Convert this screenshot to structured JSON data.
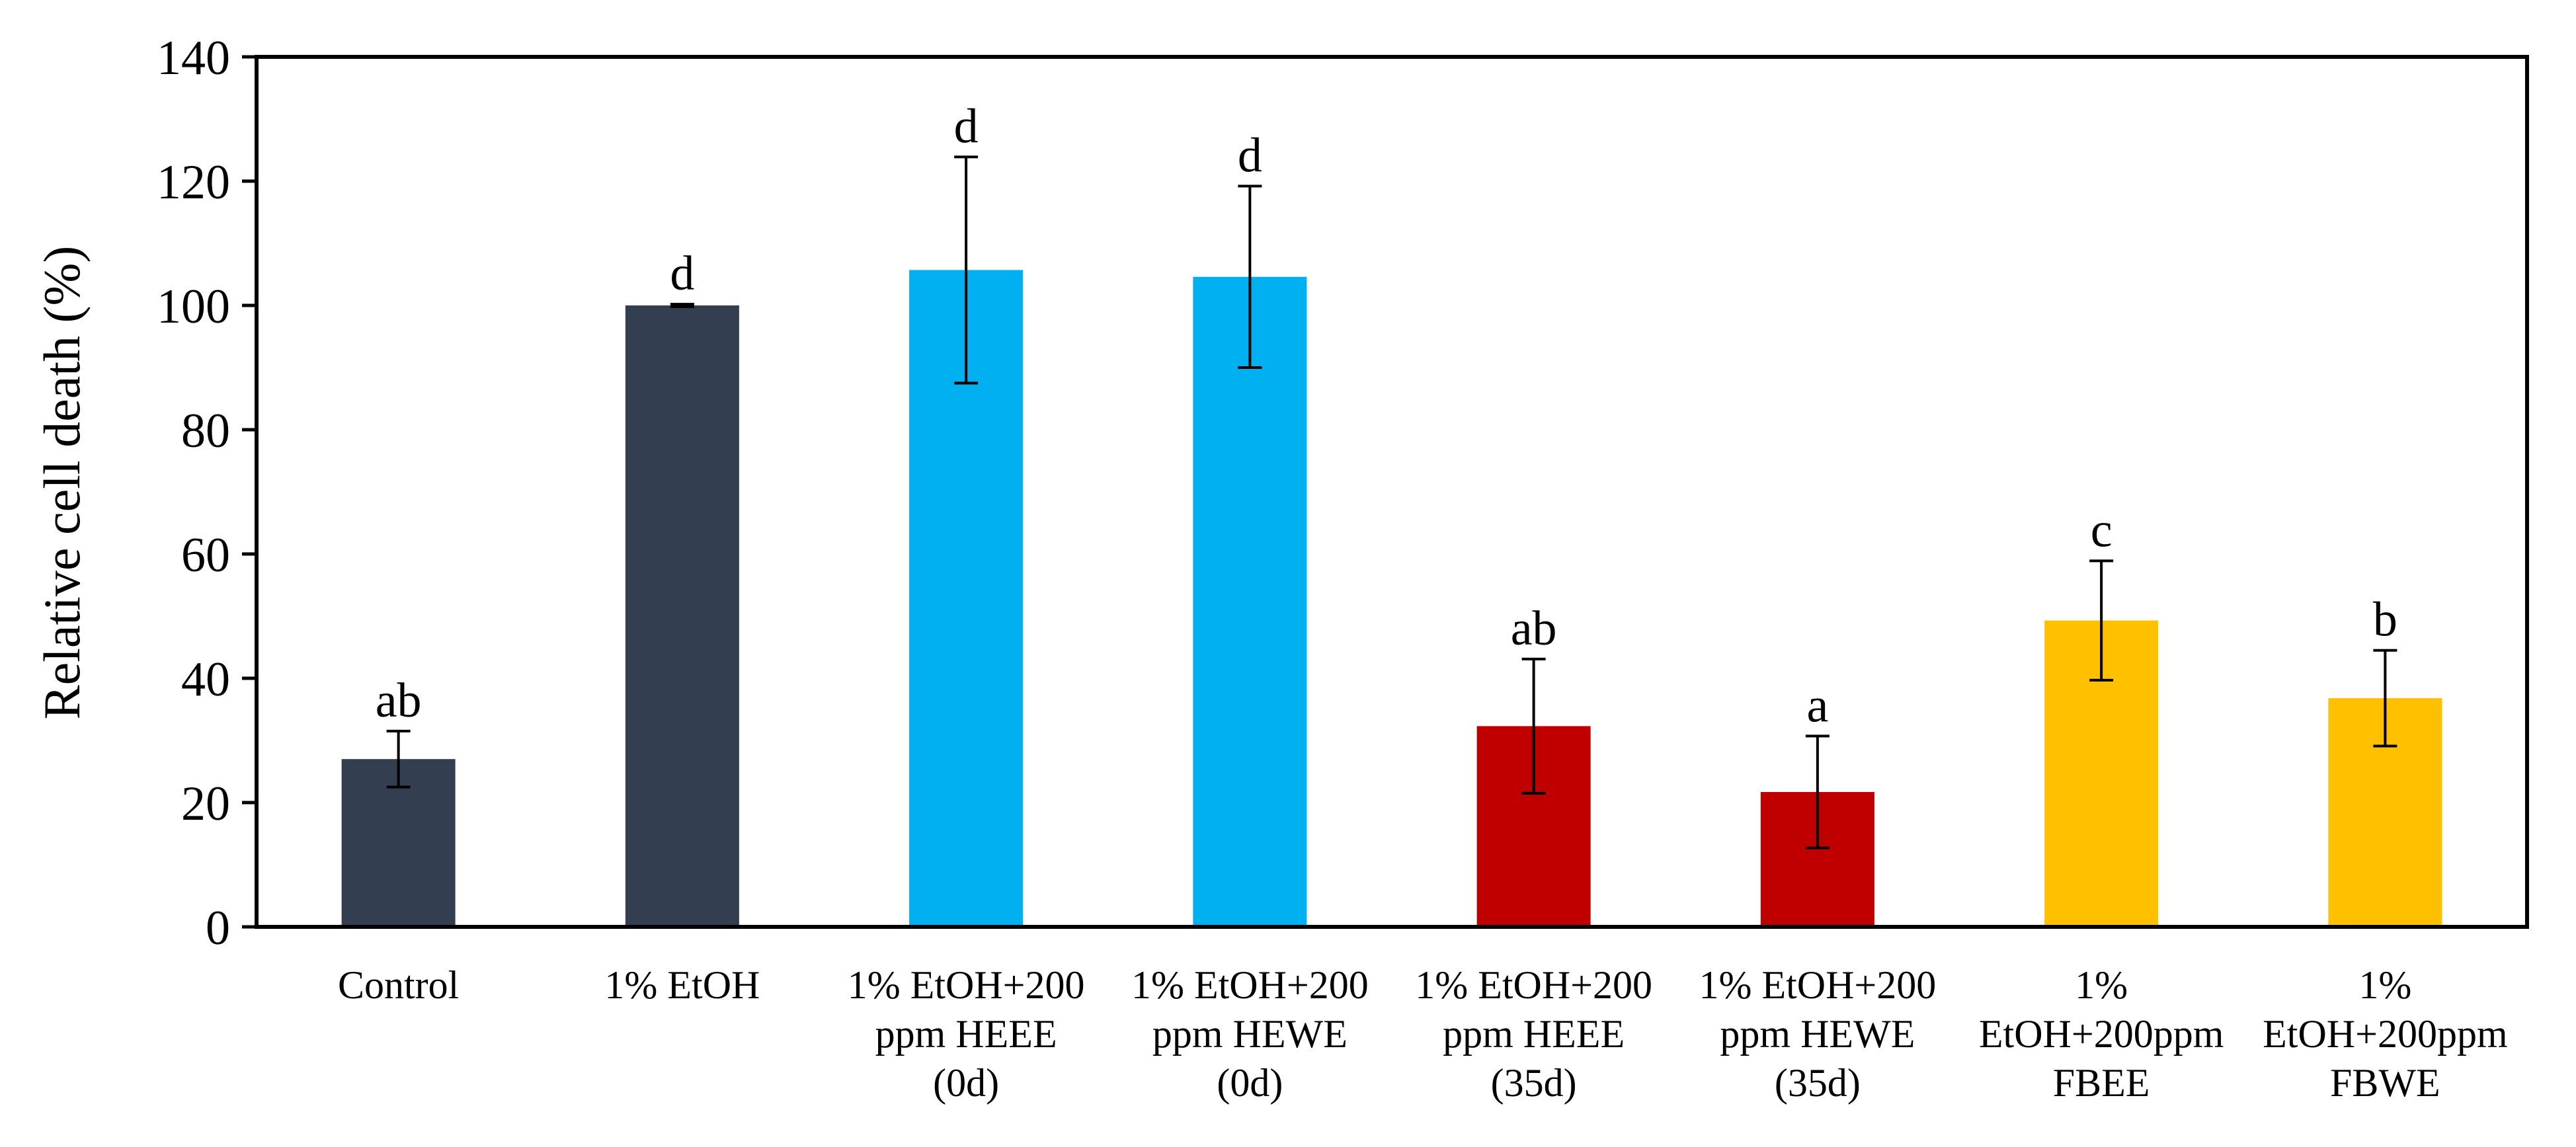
{
  "chart_data": {
    "type": "bar",
    "title": "",
    "xlabel": "",
    "ylabel": "Relative cell death (%)",
    "ylim": [
      0,
      140
    ],
    "yticks": [
      0,
      20,
      40,
      60,
      80,
      100,
      120,
      140
    ],
    "grid": false,
    "categories": [
      [
        "Control"
      ],
      [
        "1% EtOH"
      ],
      [
        "1% EtOH+200",
        "ppm HEEE",
        "(0d)"
      ],
      [
        "1% EtOH+200",
        "ppm HEWE",
        "(0d)"
      ],
      [
        "1% EtOH+200",
        "ppm HEEE",
        "(35d)"
      ],
      [
        "1% EtOH+200",
        "ppm HEWE",
        "(35d)"
      ],
      [
        "1%",
        "EtOH+200ppm",
        "FBEE"
      ],
      [
        "1%",
        "EtOH+200ppm",
        "FBWE"
      ]
    ],
    "values": [
      27,
      100,
      105.7,
      104.6,
      32.3,
      21.7,
      49.3,
      36.8
    ],
    "error": [
      4.5,
      0.2,
      18.2,
      14.6,
      10.8,
      9.0,
      9.6,
      7.7
    ],
    "significance_letters": [
      "ab",
      "d",
      "d",
      "d",
      "ab",
      "a",
      "c",
      "b"
    ],
    "bar_colors": [
      "#333f50",
      "#333f50",
      "#00b0f0",
      "#00b0f0",
      "#c00000",
      "#c00000",
      "#ffc000",
      "#ffc000"
    ]
  }
}
